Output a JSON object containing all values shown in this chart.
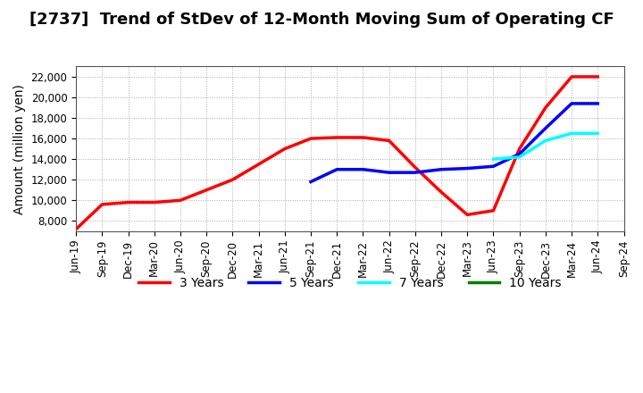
{
  "title": "[2737]  Trend of StDev of 12-Month Moving Sum of Operating CF",
  "ylabel": "Amount (million yen)",
  "background_color": "#FFFFFF",
  "plot_bg_color": "#FFFFFF",
  "grid_color": "#AAAAAA",
  "ylim": [
    7000,
    23000
  ],
  "yticks": [
    8000,
    10000,
    12000,
    14000,
    16000,
    18000,
    20000,
    22000
  ],
  "series": {
    "3 Years": {
      "color": "#FF0000",
      "x": [
        "Jun-19",
        "Sep-19",
        "Dec-19",
        "Mar-20",
        "Jun-20",
        "Sep-20",
        "Dec-20",
        "Mar-21",
        "Jun-21",
        "Sep-21",
        "Dec-21",
        "Mar-22",
        "Jun-22",
        "Sep-22",
        "Dec-22",
        "Mar-23",
        "Jun-23",
        "Sep-23",
        "Dec-23",
        "Mar-24",
        "Jun-24"
      ],
      "y": [
        7200,
        9600,
        9800,
        9800,
        10000,
        11000,
        12000,
        13500,
        15000,
        16000,
        16100,
        16100,
        15800,
        13200,
        10800,
        8600,
        9000,
        15000,
        19000,
        22000,
        22000
      ]
    },
    "5 Years": {
      "color": "#0000FF",
      "x": [
        "Sep-21",
        "Dec-21",
        "Mar-22",
        "Jun-22",
        "Sep-22",
        "Dec-22",
        "Mar-23",
        "Jun-23",
        "Sep-23",
        "Dec-23",
        "Mar-24",
        "Jun-24"
      ],
      "y": [
        11800,
        13000,
        13000,
        12700,
        12700,
        13000,
        13100,
        13300,
        14500,
        17000,
        19400,
        19400
      ]
    },
    "7 Years": {
      "color": "#00FFFF",
      "x": [
        "Jun-23",
        "Sep-23",
        "Dec-23",
        "Mar-24",
        "Jun-24"
      ],
      "y": [
        14000,
        14200,
        15800,
        16500,
        16500
      ]
    },
    "10 Years": {
      "color": "#008000",
      "x": [],
      "y": []
    }
  },
  "xtick_labels": [
    "Jun-19",
    "Sep-19",
    "Dec-19",
    "Mar-20",
    "Jun-20",
    "Sep-20",
    "Dec-20",
    "Mar-21",
    "Jun-21",
    "Sep-21",
    "Dec-21",
    "Mar-22",
    "Jun-22",
    "Sep-22",
    "Dec-22",
    "Mar-23",
    "Jun-23",
    "Sep-23",
    "Dec-23",
    "Mar-24",
    "Jun-24",
    "Sep-24"
  ],
  "legend_labels": [
    "3 Years",
    "5 Years",
    "7 Years",
    "10 Years"
  ],
  "legend_colors": [
    "#FF0000",
    "#0000FF",
    "#00FFFF",
    "#008000"
  ],
  "linewidth": 2.5,
  "title_fontsize": 13,
  "axis_fontsize": 10,
  "tick_fontsize": 8.5,
  "legend_fontsize": 10
}
